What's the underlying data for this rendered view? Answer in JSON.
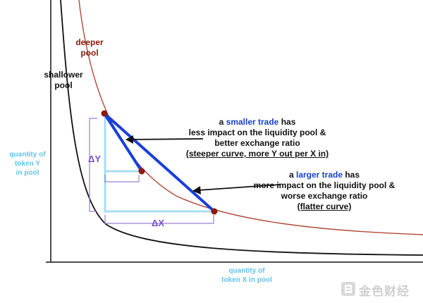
{
  "labels": {
    "deeper_pool": [
      "deeper",
      "pool"
    ],
    "shallower_pool": [
      "shallower",
      "pool"
    ],
    "y_axis": [
      "quantity of",
      "token Y",
      "in pool"
    ],
    "x_axis": [
      "quantity of",
      "token X in pool"
    ],
    "delta_y": "ΔY",
    "delta_x": "ΔX"
  },
  "annotations": {
    "smaller_trade": {
      "prefix": "a ",
      "highlight": "smaller trade",
      "suffix": " has",
      "line2": "less impact on the liquidity pool &",
      "line3": "better exchange ratio",
      "line4": "(steeper curve, more Y out per X in)"
    },
    "larger_trade": {
      "prefix": "a ",
      "highlight": "larger trade",
      "suffix": " has",
      "line2": "more impact on the liquidity pool &",
      "line3": "worse exchange ratio",
      "line4": "(flatter curve)"
    }
  },
  "watermark": {
    "text": "金色财经"
  },
  "colors": {
    "deeper_curve": "#b04a3a",
    "shallower_curve": "#111111",
    "trade_line": "#1a3fd9",
    "point": "#8b1a0e",
    "delta_box": "#a8dcf4",
    "bracket": "#9a7fd0",
    "axis_label": "#5fc3ea"
  }
}
